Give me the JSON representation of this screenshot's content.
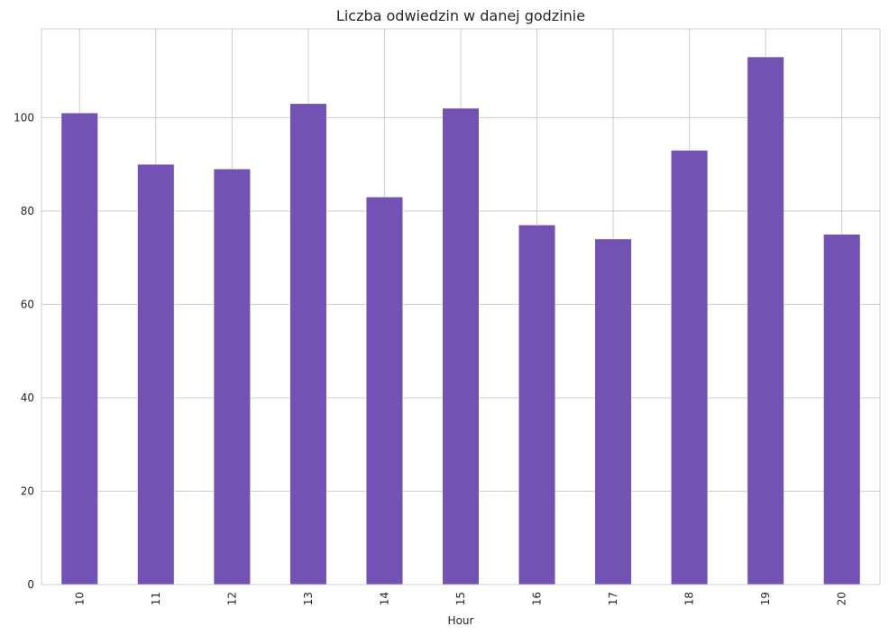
{
  "chart_data": {
    "type": "bar",
    "title": "Liczba odwiedzin w danej godzinie",
    "xlabel": "Hour",
    "ylabel": "",
    "categories": [
      "10",
      "11",
      "12",
      "13",
      "14",
      "15",
      "16",
      "17",
      "18",
      "19",
      "20"
    ],
    "values": [
      101,
      90,
      89,
      103,
      83,
      102,
      77,
      74,
      93,
      113,
      75
    ],
    "ylim": [
      0,
      119
    ],
    "yticks": [
      0,
      20,
      40,
      60,
      80,
      100
    ],
    "ytick_labels": [
      "0",
      "20",
      "40",
      "60",
      "80",
      "100"
    ],
    "grid": true,
    "bar_color": "#7253b3",
    "grid_color": "#cccccc",
    "background": "#ffffff",
    "tick_label_rotation": "vertical"
  }
}
